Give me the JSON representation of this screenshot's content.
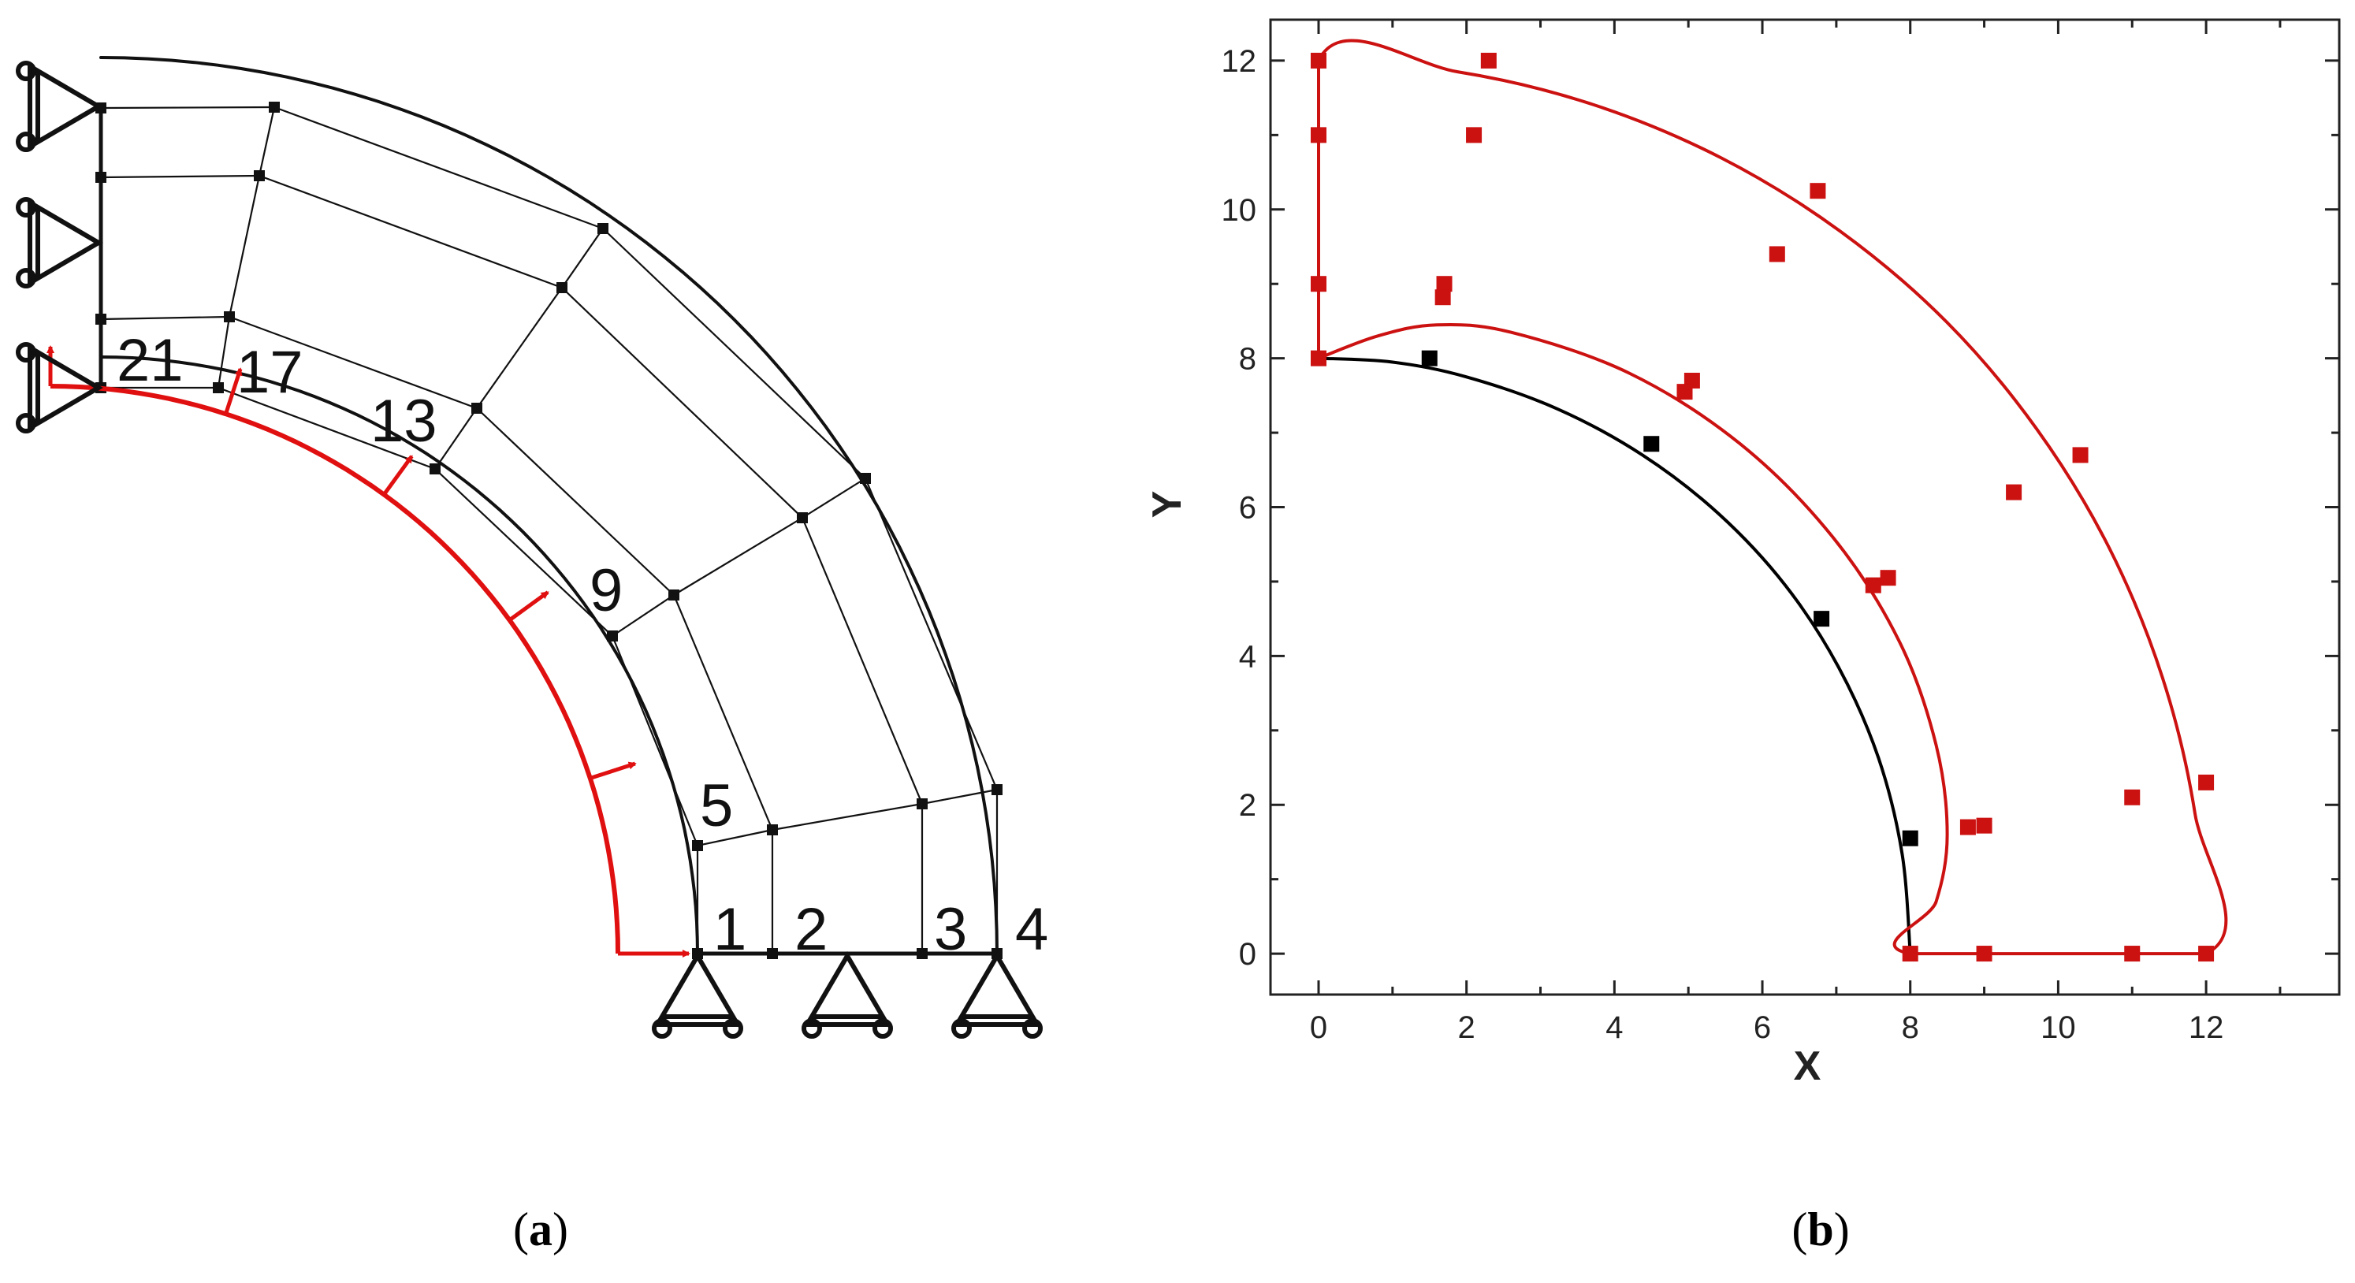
{
  "colors": {
    "mesh": "#111111",
    "pressure": "#e01010",
    "solution_red": "#cc1111",
    "solution_black": "#000000"
  },
  "panel_a": {
    "caption_open": "(",
    "caption_letter": "a",
    "caption_close": ")",
    "node_labels": [
      "1",
      "2",
      "3",
      "4",
      "5",
      "9",
      "13",
      "17",
      "21"
    ]
  },
  "panel_b": {
    "caption_open": "(",
    "caption_letter": "b",
    "caption_close": ")"
  },
  "chart_data": {
    "type": "scatter",
    "xlabel": "X",
    "ylabel": "Y",
    "xlim": [
      -0.65,
      13.8
    ],
    "ylim": [
      -0.55,
      12.55
    ],
    "xticks": [
      0,
      2,
      4,
      6,
      8,
      10,
      12
    ],
    "yticks": [
      0,
      2,
      4,
      6,
      8,
      10,
      12
    ],
    "x_minor_step": 1,
    "y_minor_step": 1,
    "grid": false,
    "series": [
      {
        "color": "#000000",
        "kind": "line",
        "points": [
          [
            8,
            0
          ],
          [
            7.89,
            1.34
          ],
          [
            7.57,
            2.63
          ],
          [
            7.03,
            3.85
          ],
          [
            6.31,
            4.95
          ],
          [
            5.41,
            5.91
          ],
          [
            4.38,
            6.7
          ],
          [
            3.23,
            7.32
          ],
          [
            2.0,
            7.75
          ],
          [
            0.99,
            7.95
          ],
          [
            0,
            8
          ]
        ]
      },
      {
        "color": "#000000",
        "kind": "markers",
        "points": [
          [
            8.0,
            1.55
          ],
          [
            6.8,
            4.5
          ],
          [
            4.5,
            6.85
          ],
          [
            1.5,
            8.0
          ]
        ]
      },
      {
        "color": "#cc1111",
        "kind": "line",
        "points": [
          [
            0,
            8
          ],
          [
            0,
            12
          ],
          [
            1.88,
            11.85
          ],
          [
            3.71,
            11.41
          ],
          [
            5.45,
            10.69
          ],
          [
            7.05,
            9.71
          ],
          [
            8.49,
            8.49
          ],
          [
            9.71,
            7.05
          ],
          [
            10.69,
            5.45
          ],
          [
            11.41,
            3.71
          ],
          [
            11.85,
            1.88
          ],
          [
            12,
            0
          ],
          [
            8,
            0
          ],
          [
            8.35,
            0.7
          ],
          [
            8.5,
            1.6
          ],
          [
            8.35,
            2.8
          ],
          [
            7.85,
            4.2
          ],
          [
            6.95,
            5.6
          ],
          [
            5.7,
            6.85
          ],
          [
            4.2,
            7.8
          ],
          [
            2.6,
            8.35
          ],
          [
            1.6,
            8.45
          ],
          [
            0.8,
            8.3
          ],
          [
            0,
            8
          ]
        ]
      },
      {
        "color": "#cc1111",
        "kind": "markers",
        "points": [
          [
            0,
            12
          ],
          [
            0,
            11
          ],
          [
            0,
            9
          ],
          [
            0,
            8
          ],
          [
            2.3,
            12
          ],
          [
            2.1,
            11
          ],
          [
            1.7,
            9
          ],
          [
            1.68,
            8.82
          ],
          [
            5.05,
            7.7
          ],
          [
            4.95,
            7.55
          ],
          [
            6.75,
            10.25
          ],
          [
            6.2,
            9.4
          ],
          [
            7.5,
            4.95
          ],
          [
            7.7,
            5.05
          ],
          [
            9.4,
            6.2
          ],
          [
            10.3,
            6.7
          ],
          [
            8.78,
            1.7
          ],
          [
            9.0,
            1.72
          ],
          [
            11.0,
            2.1
          ],
          [
            12.0,
            2.3
          ],
          [
            8,
            0
          ],
          [
            9,
            0
          ],
          [
            11,
            0
          ],
          [
            12,
            0
          ]
        ]
      }
    ]
  }
}
